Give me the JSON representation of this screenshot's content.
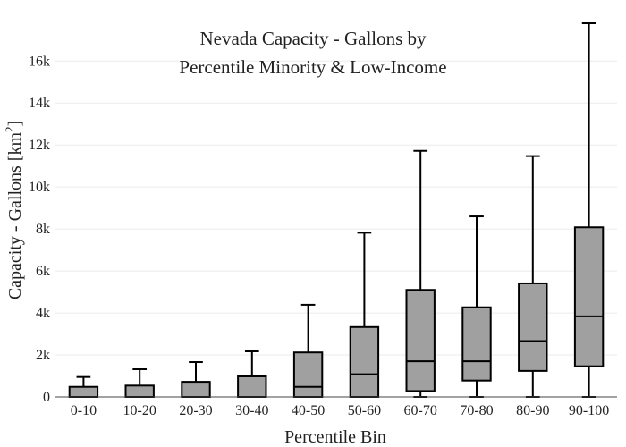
{
  "chart_data": {
    "type": "boxplot",
    "title_lines": [
      "Nevada Capacity - Gallons by",
      "Percentile Minority & Low-Income"
    ],
    "xlabel": "Percentile Bin",
    "ylabel_prefix": "Capacity - Gallons  [km",
    "ylabel_sup": "2",
    "ylabel_suffix": "]",
    "ylim": [
      0,
      17800
    ],
    "yticks": [
      0,
      2000,
      4000,
      6000,
      8000,
      10000,
      12000,
      14000,
      16000
    ],
    "ytick_labels": [
      "0",
      "2k",
      "4k",
      "6k",
      "8k",
      "10k",
      "12k",
      "14k",
      "16k"
    ],
    "grid": true,
    "legend": "none",
    "colors": {
      "box_fill": "#a0a0a0",
      "box_stroke": "#000000",
      "grid": "#ebebeb",
      "axis": "#444444"
    },
    "categories": [
      "0-10",
      "10-20",
      "20-30",
      "30-40",
      "40-50",
      "50-60",
      "60-70",
      "70-80",
      "80-90",
      "90-100"
    ],
    "boxes": [
      {
        "min": 0,
        "q1": 0,
        "median": 0,
        "q3": 480,
        "max": 950
      },
      {
        "min": 0,
        "q1": 0,
        "median": 0,
        "q3": 540,
        "max": 1320
      },
      {
        "min": 0,
        "q1": 0,
        "median": 0,
        "q3": 720,
        "max": 1660
      },
      {
        "min": 0,
        "q1": 0,
        "median": 0,
        "q3": 980,
        "max": 2170
      },
      {
        "min": 0,
        "q1": 0,
        "median": 480,
        "q3": 2120,
        "max": 4390
      },
      {
        "min": 0,
        "q1": 0,
        "median": 1080,
        "q3": 3330,
        "max": 7820
      },
      {
        "min": 0,
        "q1": 280,
        "median": 1700,
        "q3": 5100,
        "max": 11720
      },
      {
        "min": 0,
        "q1": 780,
        "median": 1700,
        "q3": 4270,
        "max": 8600
      },
      {
        "min": 0,
        "q1": 1240,
        "median": 2660,
        "q3": 5410,
        "max": 11470
      },
      {
        "min": 0,
        "q1": 1460,
        "median": 3840,
        "q3": 8080,
        "max": 17800
      }
    ]
  }
}
